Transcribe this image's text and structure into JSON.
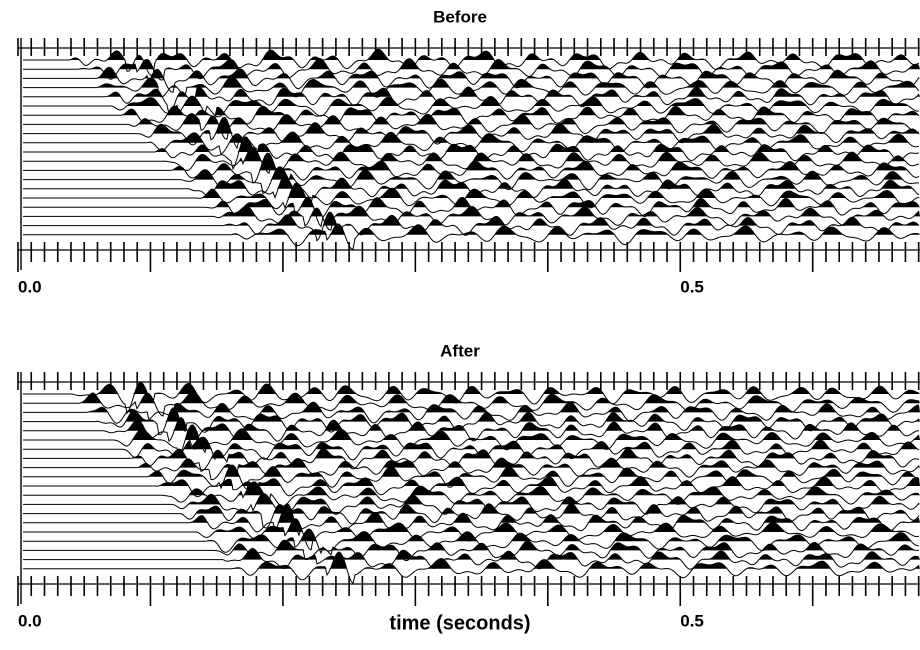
{
  "chart_data": [
    {
      "type": "wiggle",
      "title": "Before",
      "xlim": [
        0,
        0.681
      ],
      "xticks": [
        {
          "value": 0,
          "label": "0.0"
        },
        {
          "value": 0.5,
          "label": "0.5"
        }
      ],
      "minor_xticks": [
        0,
        0.01,
        0.02,
        0.03,
        0.04,
        0.05,
        0.06,
        0.07,
        0.08,
        0.09,
        0.1,
        0.11,
        0.12,
        0.13,
        0.14,
        0.15,
        0.16,
        0.17,
        0.18,
        0.19,
        0.2,
        0.21,
        0.22,
        0.23,
        0.24,
        0.25,
        0.26,
        0.27,
        0.28,
        0.29,
        0.3,
        0.31,
        0.32,
        0.33,
        0.34,
        0.35,
        0.36,
        0.37,
        0.38,
        0.39,
        0.4,
        0.41,
        0.42,
        0.43,
        0.44,
        0.45,
        0.46,
        0.47,
        0.48,
        0.49,
        0.5,
        0.51,
        0.52,
        0.53,
        0.54,
        0.55,
        0.56,
        0.57,
        0.58,
        0.59,
        0.6,
        0.61,
        0.62,
        0.63,
        0.64,
        0.65,
        0.66,
        0.67,
        0.68
      ]
    },
    {
      "type": "wiggle",
      "title": "After",
      "xlabel": "time (seconds)",
      "xlim": [
        0,
        0.681
      ],
      "xticks": [
        {
          "value": 0,
          "label": "0.0"
        },
        {
          "value": 0.5,
          "label": "0.5"
        }
      ],
      "minor_xticks": [
        0,
        0.01,
        0.02,
        0.03,
        0.04,
        0.05,
        0.06,
        0.07,
        0.08,
        0.09,
        0.1,
        0.11,
        0.12,
        0.13,
        0.14,
        0.15,
        0.16,
        0.17,
        0.18,
        0.19,
        0.2,
        0.21,
        0.22,
        0.23,
        0.24,
        0.25,
        0.26,
        0.27,
        0.28,
        0.29,
        0.3,
        0.31,
        0.32,
        0.33,
        0.34,
        0.35,
        0.36,
        0.37,
        0.38,
        0.39,
        0.4,
        0.41,
        0.42,
        0.43,
        0.44,
        0.45,
        0.46,
        0.47,
        0.48,
        0.49,
        0.5,
        0.51,
        0.52,
        0.53,
        0.54,
        0.55,
        0.56,
        0.57,
        0.58,
        0.59,
        0.6,
        0.61,
        0.62,
        0.63,
        0.64,
        0.65,
        0.66,
        0.67,
        0.68
      ]
    }
  ]
}
